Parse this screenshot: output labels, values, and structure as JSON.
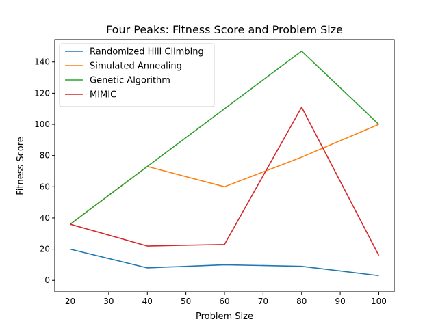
{
  "chart_data": {
    "type": "line",
    "title": "Four Peaks: Fitness Score and Problem Size",
    "xlabel": "Problem Size",
    "ylabel": "Fitness Score",
    "x": [
      20,
      40,
      60,
      80,
      100
    ],
    "xlim": [
      16,
      104
    ],
    "ylim": [
      -7.35,
      154.35
    ],
    "xticks": [
      20,
      30,
      40,
      50,
      60,
      70,
      80,
      90,
      100
    ],
    "yticks": [
      0,
      20,
      40,
      60,
      80,
      100,
      120,
      140
    ],
    "grid": false,
    "legend_position": "top-left",
    "series": [
      {
        "name": "Randomized Hill Climbing",
        "color": "#1f77b4",
        "values": [
          20,
          8,
          10,
          9,
          3
        ]
      },
      {
        "name": "Simulated Annealing",
        "color": "#ff7f0e",
        "values": [
          36,
          73,
          60,
          79,
          100
        ]
      },
      {
        "name": "Genetic Algorithm",
        "color": "#2ca02c",
        "values": [
          36,
          73,
          110,
          147,
          100
        ]
      },
      {
        "name": "MIMIC",
        "color": "#d62728",
        "values": [
          36,
          22,
          23,
          111,
          16
        ]
      }
    ]
  }
}
